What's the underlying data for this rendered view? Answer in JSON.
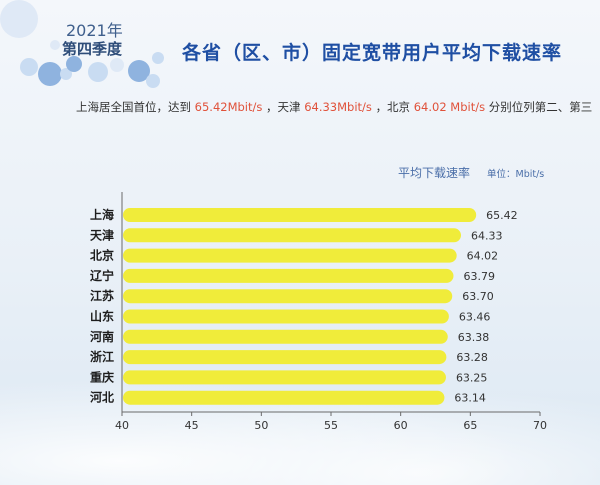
{
  "header": {
    "year": "2021年",
    "quarter": "第四季度",
    "title": "各省（区、市）固定宽带用户平均下载速率"
  },
  "subtitle": {
    "part1": "上海居全国首位，达到",
    "value1": "65.42Mbit/s",
    "part2": "，天津",
    "value2": "64.33Mbit/s",
    "part3": "，北京",
    "value3": "64.02 Mbit/s",
    "part4": "分别位列第二、第三"
  },
  "legend": {
    "label": "平均下载速率",
    "unit": "单位：Mbit/s"
  },
  "colors": {
    "bar": "#f0ec3a",
    "title": "#1f4fa3",
    "highlight": "#e0513a",
    "bubble": "#8fb3df"
  },
  "chart_data": {
    "type": "bar",
    "orientation": "horizontal",
    "categories": [
      "上海",
      "天津",
      "北京",
      "辽宁",
      "江苏",
      "山东",
      "河南",
      "浙江",
      "重庆",
      "河北"
    ],
    "values": [
      65.42,
      64.33,
      64.02,
      63.79,
      63.7,
      63.46,
      63.38,
      63.28,
      63.25,
      63.14
    ],
    "value_labels": [
      "65.42",
      "64.33",
      "64.02",
      "63.79",
      "63.70",
      "63.46",
      "63.38",
      "63.28",
      "63.25",
      "63.14"
    ],
    "xlim": [
      40,
      70
    ],
    "xticks": [
      40,
      45,
      50,
      55,
      60,
      65,
      70
    ],
    "title": "平均下载速率",
    "xlabel": "",
    "ylabel": "",
    "unit": "单位：Mbit/s",
    "grid": false
  }
}
